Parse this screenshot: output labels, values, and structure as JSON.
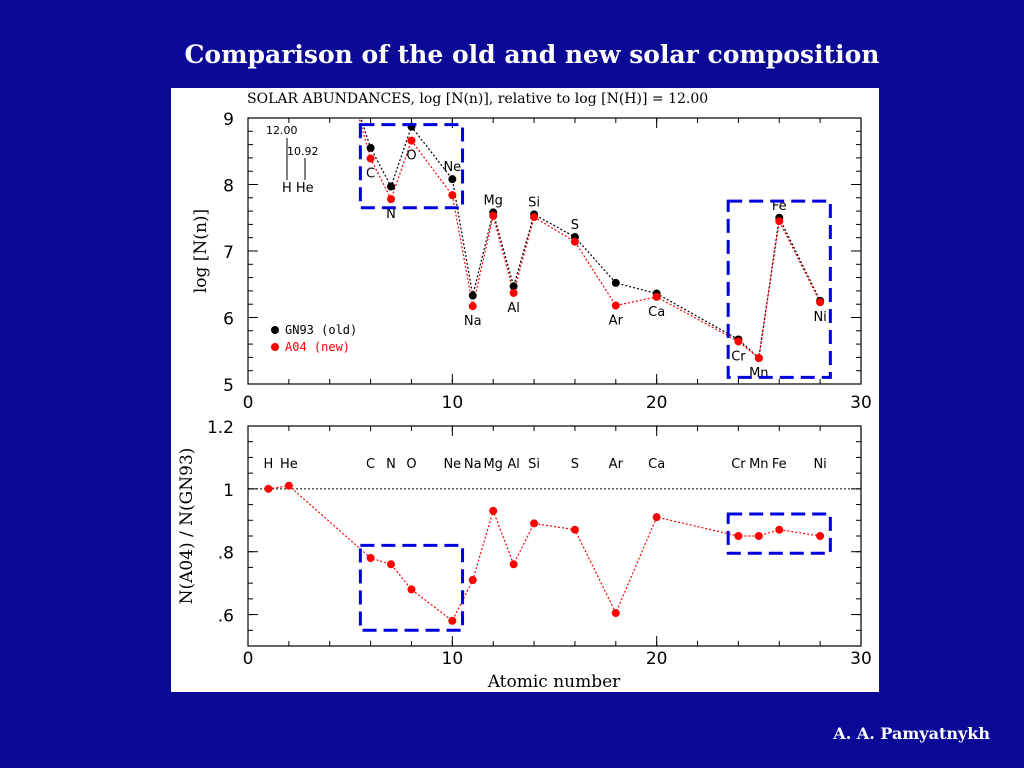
{
  "slide": {
    "title": "Comparison of the old and new solar composition",
    "author": "A. A. Pamyatnykh"
  },
  "colors": {
    "background": "#0a0a96",
    "old": "#000000",
    "new": "#ff0000",
    "box": "#0000dd"
  },
  "chart_data": [
    {
      "type": "line",
      "title": "SOLAR ABUNDANCES, log [N(n)], relative to log [N(H)] = 12.00",
      "xlabel": "",
      "ylabel": "log [N(n)]",
      "xlim": [
        0,
        30
      ],
      "ylim": [
        5,
        9
      ],
      "xticks": [
        0,
        10,
        20,
        30
      ],
      "yticks": [
        5,
        6,
        7,
        8,
        9
      ],
      "x": [
        6,
        7,
        8,
        10,
        11,
        12,
        13,
        14,
        16,
        18,
        20,
        24,
        25,
        26,
        28
      ],
      "elements": [
        "C",
        "N",
        "O",
        "Ne",
        "Na",
        "Mg",
        "Al",
        "Si",
        "S",
        "Ar",
        "Ca",
        "Cr",
        "Mn",
        "Fe",
        "Ni"
      ],
      "series": [
        {
          "name": "GN93 (old)",
          "values": [
            8.55,
            7.97,
            8.87,
            8.08,
            6.33,
            7.58,
            6.47,
            7.55,
            7.21,
            6.52,
            6.36,
            5.67,
            5.39,
            7.5,
            6.25
          ]
        },
        {
          "name": "A04  (new)",
          "values": [
            8.39,
            7.78,
            8.66,
            7.84,
            6.17,
            7.53,
            6.37,
            7.51,
            7.14,
            6.18,
            6.31,
            5.64,
            5.39,
            7.45,
            6.23
          ]
        }
      ],
      "hhe_annotation": {
        "labels": [
          "12.00",
          "10.92"
        ],
        "elements": "H He"
      },
      "legend": "bottom-left",
      "highlight_boxes": [
        {
          "x": [
            5.5,
            10.5
          ],
          "y": [
            7.65,
            8.9
          ]
        },
        {
          "x": [
            23.5,
            28.5
          ],
          "y": [
            5.1,
            7.75
          ]
        }
      ]
    },
    {
      "type": "line",
      "title": "",
      "xlabel": "Atomic number",
      "ylabel": "N(A04)  /  N(GN93)",
      "xlim": [
        0,
        30
      ],
      "ylim": [
        0.5,
        1.2
      ],
      "xticks": [
        0,
        10,
        20,
        30
      ],
      "yticks": [
        0.6,
        0.8,
        1,
        1.2
      ],
      "ytick_labels": [
        ".6",
        ".8",
        "1",
        "1.2"
      ],
      "reference_line": 1,
      "x": [
        1,
        2,
        6,
        7,
        8,
        10,
        11,
        12,
        13,
        14,
        16,
        18,
        20,
        24,
        25,
        26,
        28
      ],
      "elements": [
        "H",
        "He",
        "C",
        "N",
        "O",
        "Ne",
        "Na",
        "Mg",
        "Al",
        "Si",
        "S",
        "Ar",
        "Ca",
        "Cr",
        "Mn",
        "Fe",
        "Ni"
      ],
      "series": [
        {
          "name": "",
          "values": [
            1.0,
            1.01,
            0.78,
            0.76,
            0.68,
            0.58,
            0.71,
            0.93,
            0.76,
            0.89,
            0.87,
            0.605,
            0.91,
            0.85,
            0.85,
            0.87,
            0.85
          ]
        }
      ],
      "highlight_boxes": [
        {
          "x": [
            5.5,
            10.5
          ],
          "y": [
            0.55,
            0.82
          ]
        },
        {
          "x": [
            23.5,
            28.5
          ],
          "y": [
            0.795,
            0.92
          ]
        }
      ]
    }
  ]
}
